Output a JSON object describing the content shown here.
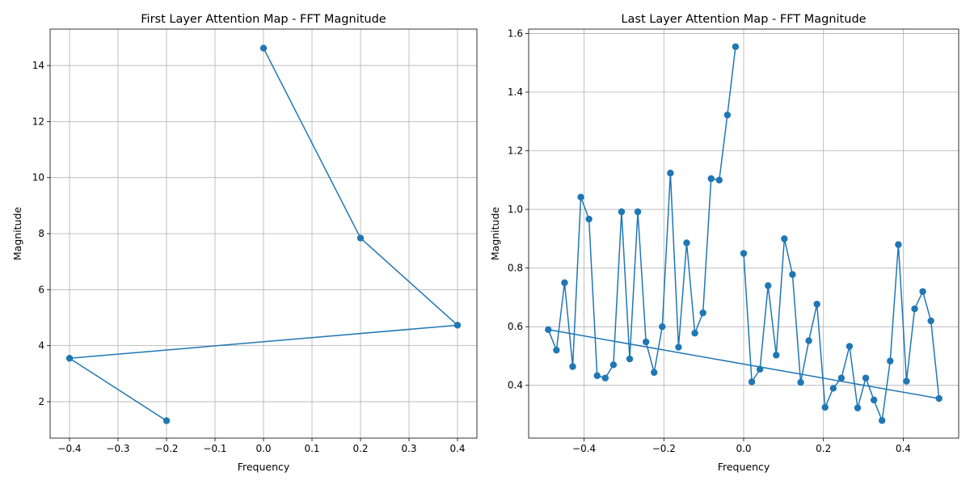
{
  "figure": {
    "line_color": "#1f77b4",
    "grid_color": "#b0b0b0"
  },
  "chart_data": [
    {
      "type": "line",
      "title": "First Layer Attention Map - FFT Magnitude",
      "xlabel": "Frequency",
      "ylabel": "Magnitude",
      "xlim": [
        -0.44,
        0.44
      ],
      "ylim": [
        0.7,
        15.3
      ],
      "grid": true,
      "xticks": [
        -0.4,
        -0.3,
        -0.2,
        -0.1,
        0.0,
        0.1,
        0.2,
        0.3,
        0.4
      ],
      "xtick_labels": [
        "−0.4",
        "−0.3",
        "−0.2",
        "−0.1",
        "0.0",
        "0.1",
        "0.2",
        "0.3",
        "0.4"
      ],
      "yticks": [
        2,
        4,
        6,
        8,
        10,
        12,
        14
      ],
      "ytick_labels": [
        "2",
        "4",
        "6",
        "8",
        "10",
        "12",
        "14"
      ],
      "series": [
        {
          "x": [
            0.0,
            0.2,
            0.4,
            -0.4,
            -0.2
          ],
          "y": [
            14.62,
            7.84,
            4.73,
            3.55,
            1.32
          ]
        }
      ]
    },
    {
      "type": "line",
      "title": "Last Layer Attention Map - FFT Magnitude",
      "xlabel": "Frequency",
      "ylabel": "Magnitude",
      "xlim": [
        -0.539,
        0.539
      ],
      "ylim": [
        0.22,
        1.615
      ],
      "grid": true,
      "xticks": [
        -0.4,
        -0.2,
        0.0,
        0.2,
        0.4
      ],
      "xtick_labels": [
        "−0.4",
        "−0.2",
        "0.0",
        "0.2",
        "0.4"
      ],
      "yticks": [
        0.4,
        0.6,
        0.8,
        1.0,
        1.2,
        1.4,
        1.6
      ],
      "ytick_labels": [
        "0.4",
        "0.6",
        "0.8",
        "1.0",
        "1.2",
        "1.4",
        "1.6"
      ],
      "series": [
        {
          "x": [
            0.0,
            0.0204,
            0.0408,
            0.0612,
            0.0816,
            0.102,
            0.1224,
            0.1429,
            0.1633,
            0.1837,
            0.2041,
            0.2245,
            0.2449,
            0.2653,
            0.2857,
            0.3061,
            0.3265,
            0.3469,
            0.3673,
            0.3878,
            0.4082,
            0.4286,
            0.449,
            0.4694,
            0.4898,
            -0.4898,
            -0.4694,
            -0.449,
            -0.4286,
            -0.4082,
            -0.3878,
            -0.3673,
            -0.3469,
            -0.3265,
            -0.3061,
            -0.2857,
            -0.2653,
            -0.2449,
            -0.2245,
            -0.2041,
            -0.1837,
            -0.1633,
            -0.1429,
            -0.1224,
            -0.102,
            -0.0816,
            -0.0612,
            -0.0408,
            -0.0204
          ],
          "y": [
            0.85,
            0.412,
            0.455,
            0.74,
            0.503,
            0.9,
            0.778,
            0.41,
            0.552,
            0.677,
            0.325,
            0.39,
            0.425,
            0.533,
            0.323,
            0.425,
            0.35,
            0.28,
            0.483,
            0.88,
            0.414,
            0.661,
            0.72,
            0.62,
            0.355,
            0.59,
            0.52,
            0.75,
            0.464,
            1.042,
            0.967,
            0.433,
            0.425,
            0.47,
            0.992,
            0.49,
            0.992,
            0.548,
            0.444,
            0.6,
            1.124,
            0.53,
            0.886,
            0.578,
            0.647,
            1.105,
            1.1,
            1.322,
            1.555
          ]
        }
      ]
    }
  ]
}
